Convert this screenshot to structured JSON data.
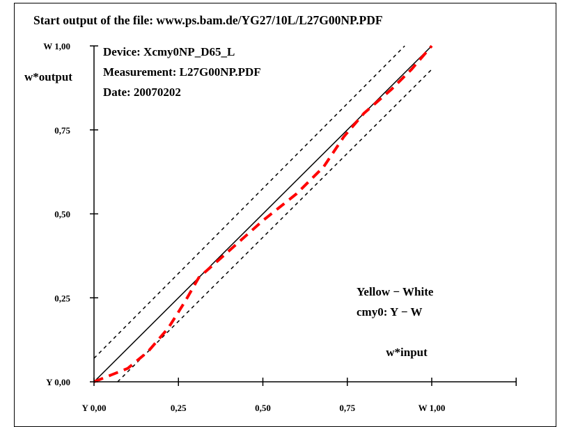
{
  "header": {
    "title": "Start output of the file: www.ps.bam.de/YG27/10L/L27G00NP.PDF"
  },
  "info": {
    "device": "Device: Xcmy0NP_D65_L",
    "measurement": "Measurement: L27G00NP.PDF",
    "date": "Date: 20070202"
  },
  "legend": {
    "line1": "Yellow − White",
    "line2": "cmy0: Y − W"
  },
  "colors": {
    "axis": "#000000",
    "measured": "#ff0000",
    "background": "#ffffff"
  },
  "chart_data": {
    "type": "line",
    "xlabel": "w*input",
    "ylabel": "w*output",
    "xlim": [
      0,
      1.25
    ],
    "ylim": [
      0,
      1.0
    ],
    "x_ticks": [
      {
        "value": 0,
        "label": "Y 0,00"
      },
      {
        "value": 0.25,
        "label": "0,25"
      },
      {
        "value": 0.5,
        "label": "0,50"
      },
      {
        "value": 0.75,
        "label": "0,75"
      },
      {
        "value": 1.0,
        "label": "W 1,00"
      }
    ],
    "x_end_tick": 1.25,
    "y_ticks": [
      {
        "value": 0,
        "label": "Y 0,00"
      },
      {
        "value": 0.25,
        "label": "0,25"
      },
      {
        "value": 0.5,
        "label": "0,50"
      },
      {
        "value": 0.75,
        "label": "0,75"
      },
      {
        "value": 1.0,
        "label": "W 1,00"
      }
    ],
    "series": [
      {
        "style": "solid",
        "color": "#000000",
        "x": [
          0,
          1.0
        ],
        "y": [
          0,
          1.0
        ]
      },
      {
        "style": "dashed",
        "color": "#000000",
        "x": [
          0,
          0.92
        ],
        "y": [
          0.07,
          1.0
        ]
      },
      {
        "style": "dashed",
        "color": "#000000",
        "x": [
          0.07,
          1.0
        ],
        "y": [
          0,
          0.93
        ]
      },
      {
        "style": "dashed",
        "color": "#ff0000",
        "x": [
          0,
          0.05,
          0.1,
          0.16,
          0.22,
          0.27,
          0.31,
          0.4,
          0.5,
          0.6,
          0.68,
          0.74,
          0.8,
          0.88,
          0.94,
          1.0
        ],
        "y": [
          0,
          0.02,
          0.04,
          0.09,
          0.16,
          0.24,
          0.31,
          0.39,
          0.48,
          0.56,
          0.64,
          0.73,
          0.8,
          0.87,
          0.93,
          1.0
        ]
      }
    ]
  }
}
